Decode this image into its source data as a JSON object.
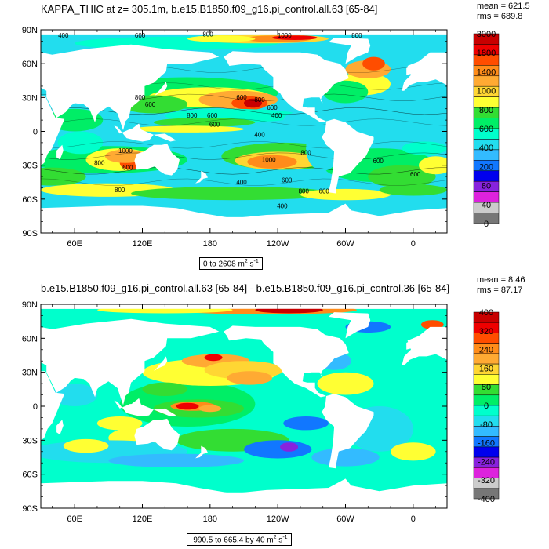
{
  "chart_data": [
    {
      "type": "heatmap",
      "title": "KAPPA_THIC at z= 305.1m, b.e15.B1850.f09_g16.pi_control.all.63 [65-84]",
      "stats": {
        "mean_label": "mean = 621.5",
        "rms_label": "rms = 689.8"
      },
      "range_label": "0 to 2608 m",
      "range_units": "2",
      "range_units_tail": " s",
      "range_units_exp": "-1",
      "y_ticks": [
        "90N",
        "60N",
        "30N",
        "0",
        "30S",
        "60S",
        "90S"
      ],
      "y_values": [
        90,
        60,
        30,
        0,
        -30,
        -60,
        -90
      ],
      "x_ticks": [
        "60E",
        "120E",
        "180",
        "120W",
        "60W",
        "0"
      ],
      "x_values": [
        60,
        120,
        180,
        240,
        300,
        360
      ],
      "xlim": [
        30,
        390
      ],
      "ylim": [
        -90,
        90
      ],
      "colorbar_labels": [
        "3000",
        "1800",
        "1400",
        "1000",
        "800",
        "600",
        "400",
        "200",
        "80",
        "40",
        "0"
      ],
      "colorbar_colors": [
        "#c80000",
        "#ee0000",
        "#ff4d00",
        "#ff8c1a",
        "#ffaa33",
        "#ffd633",
        "#ffff33",
        "#33dd33",
        "#00ee66",
        "#00ffcc",
        "#22ddee",
        "#33bbff",
        "#1177ff",
        "#0000ee",
        "#8822dd",
        "#dd22dd",
        "#cccccc",
        "#777777"
      ],
      "contour_labels": [
        {
          "text": "400",
          "lon": 50,
          "lat": 83
        },
        {
          "text": "600",
          "lon": 118,
          "lat": 83
        },
        {
          "text": "800",
          "lon": 178,
          "lat": 84
        },
        {
          "text": "1000",
          "lon": 246,
          "lat": 83
        },
        {
          "text": "800",
          "lon": 310,
          "lat": 83
        },
        {
          "text": "800",
          "lon": 118,
          "lat": 28
        },
        {
          "text": "600",
          "lon": 127,
          "lat": 22
        },
        {
          "text": "600",
          "lon": 208,
          "lat": 28
        },
        {
          "text": "800",
          "lon": 224,
          "lat": 26
        },
        {
          "text": "600",
          "lon": 235,
          "lat": 19
        },
        {
          "text": "400",
          "lon": 239,
          "lat": 12
        },
        {
          "text": "800",
          "lon": 164,
          "lat": 12
        },
        {
          "text": "600",
          "lon": 182,
          "lat": 12
        },
        {
          "text": "600",
          "lon": 184,
          "lat": 4
        },
        {
          "text": "400",
          "lon": 224,
          "lat": -5
        },
        {
          "text": "1000",
          "lon": 105,
          "lat": -19
        },
        {
          "text": "800",
          "lon": 82,
          "lat": -30
        },
        {
          "text": "600",
          "lon": 107,
          "lat": -34
        },
        {
          "text": "800",
          "lon": 265,
          "lat": -21
        },
        {
          "text": "1000",
          "lon": 232,
          "lat": -27
        },
        {
          "text": "600",
          "lon": 248,
          "lat": -45
        },
        {
          "text": "800",
          "lon": 263,
          "lat": -55
        },
        {
          "text": "600",
          "lon": 281,
          "lat": -55
        },
        {
          "text": "600",
          "lon": 329,
          "lat": -28
        },
        {
          "text": "600",
          "lon": 362,
          "lat": -40
        },
        {
          "text": "800",
          "lon": 100,
          "lat": -54
        },
        {
          "text": "400",
          "lon": 208,
          "lat": -47
        },
        {
          "text": "400",
          "lon": 244,
          "lat": -68
        }
      ]
    },
    {
      "type": "heatmap",
      "title": "b.e15.B1850.f09_g16.pi_control.all.63 [65-84] - b.e15.B1850.f09_g16.pi_control.36 [65-84]",
      "stats": {
        "mean_label": "mean = 8.46",
        "rms_label": "rms = 87.17"
      },
      "range_label": "-990.5 to 665.4 by 40 m",
      "range_units": "2",
      "range_units_tail": " s",
      "range_units_exp": "-1",
      "y_ticks": [
        "90N",
        "60N",
        "30N",
        "0",
        "30S",
        "60S",
        "90S"
      ],
      "y_values": [
        90,
        60,
        30,
        0,
        -30,
        -60,
        -90
      ],
      "x_ticks": [
        "60E",
        "120E",
        "180",
        "120W",
        "60W",
        "0"
      ],
      "x_values": [
        60,
        120,
        180,
        240,
        300,
        360
      ],
      "xlim": [
        30,
        390
      ],
      "ylim": [
        -90,
        90
      ],
      "colorbar_labels": [
        "400",
        "320",
        "240",
        "160",
        "80",
        "0",
        "-80",
        "-160",
        "-240",
        "-320",
        "-400"
      ],
      "colorbar_colors": [
        "#c80000",
        "#ee0000",
        "#ff4d00",
        "#ff8c1a",
        "#ffaa33",
        "#ffd633",
        "#ffff33",
        "#33dd33",
        "#00ee66",
        "#00ffcc",
        "#22ddee",
        "#33bbff",
        "#1177ff",
        "#0000ee",
        "#8822dd",
        "#dd22dd",
        "#cccccc",
        "#777777"
      ]
    }
  ]
}
